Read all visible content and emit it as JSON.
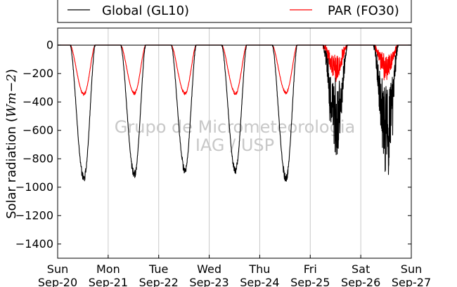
{
  "chart_data": {
    "type": "line",
    "ylabel_prefix": "Solar radiation (",
    "ylabel_unit": "Wm",
    "ylabel_exp": "−2",
    "ylabel_suffix": ")",
    "ylim": [
      -1500,
      120
    ],
    "xlim": [
      0,
      7
    ],
    "yticks": [
      0,
      -200,
      -400,
      -600,
      -800,
      -1000,
      -1200,
      -1400
    ],
    "xticks": [
      {
        "day": "Sun",
        "date": "Sep-20"
      },
      {
        "day": "Mon",
        "date": "Sep-21"
      },
      {
        "day": "Tue",
        "date": "Sep-22"
      },
      {
        "day": "Wed",
        "date": "Sep-23"
      },
      {
        "day": "Thu",
        "date": "Sep-24"
      },
      {
        "day": "Fri",
        "date": "Sep-25"
      },
      {
        "day": "Sat",
        "date": "Sep-26"
      },
      {
        "day": "Sun",
        "date": "Sep-27"
      }
    ],
    "grid": "vertical",
    "legend_placement": "top",
    "series": [
      {
        "name": "Global (GL10)",
        "color": "#000000",
        "daily_min": [
          -940,
          -910,
          -880,
          -880,
          -940,
          -710,
          -850
        ],
        "variability": [
          "low",
          "low",
          "low",
          "low",
          "low",
          "high",
          "high"
        ]
      },
      {
        "name": "PAR (FO30)",
        "color": "#ff0000",
        "daily_min": [
          -345,
          -340,
          -340,
          -340,
          -335,
          -230,
          -215
        ],
        "variability": [
          "low",
          "low",
          "low",
          "low",
          "low",
          "high",
          "high"
        ]
      }
    ],
    "watermark": [
      "Grupo de Micrometeorologia",
      "IAG / USP"
    ]
  }
}
